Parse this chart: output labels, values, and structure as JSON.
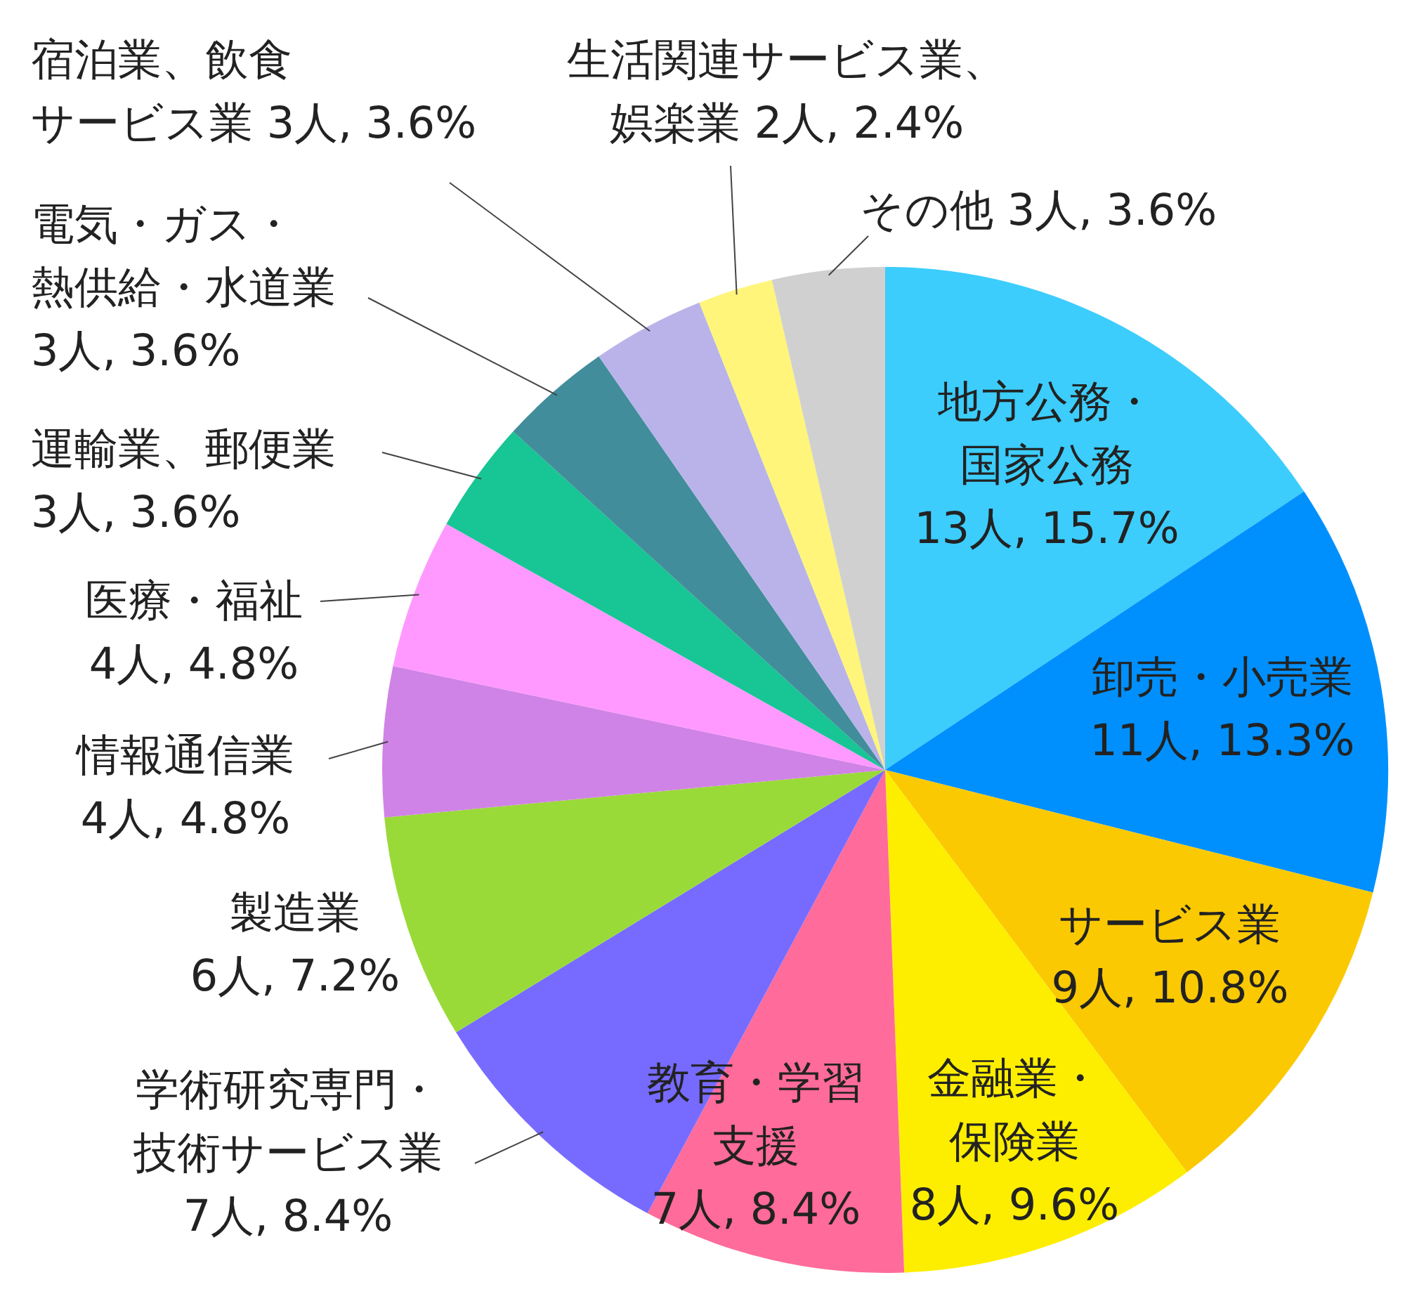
{
  "chart_data": {
    "type": "pie",
    "categories": [
      "地方公務・国家公務",
      "卸売・小売業",
      "サービス業",
      "金融業・保険業",
      "教育・学習支援",
      "学術研究専門・技術サービス業",
      "製造業",
      "情報通信業",
      "医療・福祉",
      "運輸業、郵便業",
      "電気・ガス・熱供給・水道業",
      "宿泊業、飲食サービス業",
      "生活関連サービス業、娯楽業",
      "その他"
    ],
    "values": [
      13,
      11,
      9,
      8,
      7,
      7,
      6,
      4,
      4,
      3,
      3,
      3,
      2,
      3
    ],
    "colors": [
      "#3ccdfd",
      "#0090fd",
      "#fbc902",
      "#fdee00",
      "#ff6b9a",
      "#776bff",
      "#99da38",
      "#d083e6",
      "#ff99ff",
      "#18c594",
      "#418d9b",
      "#b9b3ea",
      "#fff57a",
      "#d0d0d0"
    ],
    "value_labels": [
      "13人, 15.7%",
      "11人, 13.3%",
      "9人, 10.8%",
      "8人, 9.6%",
      "7人, 8.4%",
      "7人, 8.4%",
      "6人, 7.2%",
      "4人, 4.8%",
      "4人, 4.8%",
      "3人, 3.6%",
      "3人, 3.6%",
      "3人, 3.6%",
      "2人, 2.4%",
      "3人, 3.6%"
    ]
  }
}
